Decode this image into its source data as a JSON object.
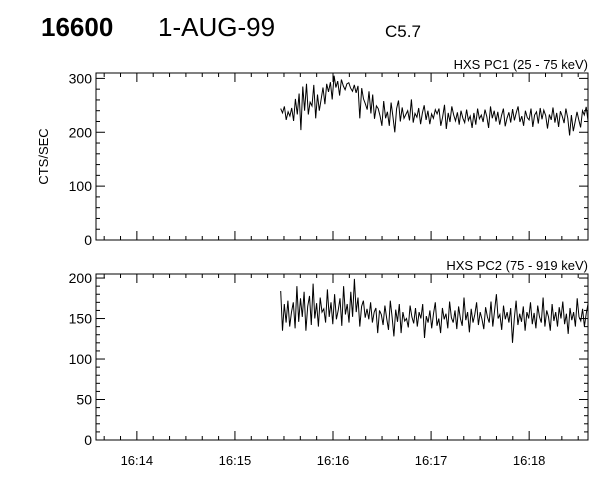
{
  "header": {
    "event_id": "16600",
    "date": "1-AUG-99",
    "flare_class": "C5.7"
  },
  "chart_data": [
    {
      "type": "line",
      "title": "HXS PC1 (25 - 75 keV)",
      "ylabel": "CTS/SEC",
      "xlabel": "",
      "ylim": [
        0,
        310
      ],
      "yticks": [
        0,
        100,
        200,
        300
      ],
      "xlim": [
        "16:13:35",
        "16:18:36"
      ],
      "xtick_labels": [
        "16:14",
        "16:15",
        "16:16",
        "16:17",
        "16:18"
      ],
      "series": [
        {
          "start_time": "16:15:28",
          "end_time": "16:18:36",
          "values": [
            244,
            236,
            248,
            223,
            238,
            230,
            245,
            221,
            262,
            233,
            272,
            204,
            285,
            240,
            290,
            233,
            256,
            249,
            288,
            226,
            270,
            240,
            262,
            283,
            252,
            290,
            275,
            293,
            261,
            305,
            283,
            295,
            268,
            298,
            286,
            279,
            290,
            292,
            282,
            276,
            288,
            273,
            286,
            226,
            282,
            262,
            253,
            242,
            276,
            235,
            270,
            225,
            249,
            244,
            230,
            212,
            258,
            226,
            238,
            212,
            255,
            228,
            200,
            244,
            259,
            220,
            246,
            226,
            233,
            240,
            222,
            261,
            218,
            235,
            228,
            245,
            215,
            236,
            250,
            223,
            240,
            215,
            234,
            226,
            242,
            234,
            244,
            212,
            228,
            251,
            206,
            236,
            219,
            248,
            232,
            221,
            237,
            214,
            240,
            226,
            218,
            242,
            222,
            230,
            208,
            236,
            214,
            244,
            225,
            232,
            219,
            242,
            229,
            208,
            248,
            226,
            240,
            220,
            238,
            214,
            231,
            244,
            211,
            226,
            237,
            218,
            243,
            222,
            236,
            248,
            219,
            230,
            212,
            240,
            227,
            223,
            244,
            210,
            232,
            238,
            216,
            245,
            224,
            241,
            231,
            207,
            233,
            223,
            246,
            218,
            236,
            210,
            239,
            230,
            217,
            244,
            226,
            194,
            232,
            202,
            219,
            238,
            223,
            209,
            240,
            232,
            247,
            221
          ]
        }
      ]
    },
    {
      "type": "line",
      "title": "HXS PC2 (75 - 919 keV)",
      "ylabel": "",
      "xlabel": "",
      "ylim": [
        0,
        205
      ],
      "yticks": [
        0,
        50,
        100,
        150,
        200
      ],
      "xlim": [
        "16:13:35",
        "16:18:36"
      ],
      "xtick_labels": [
        "16:14",
        "16:15",
        "16:16",
        "16:17",
        "16:18"
      ],
      "series": [
        {
          "start_time": "16:15:28",
          "end_time": "16:18:36",
          "values": [
            184,
            135,
            168,
            145,
            172,
            140,
            158,
            170,
            138,
            190,
            146,
            175,
            152,
            183,
            135,
            165,
            178,
            142,
            193,
            150,
            169,
            140,
            176,
            158,
            162,
            145,
            186,
            152,
            170,
            143,
            180,
            149,
            160,
            175,
            141,
            190,
            155,
            168,
            145,
            183,
            152,
            199,
            158,
            176,
            140,
            165,
            172,
            151,
            162,
            149,
            170,
            145,
            158,
            163,
            132,
            160,
            155,
            142,
            166,
            150,
            136,
            172,
            152,
            128,
            161,
            146,
            168,
            132,
            158,
            147,
            150,
            139,
            166,
            152,
            144,
            163,
            140,
            158,
            150,
            168,
            126,
            153,
            145,
            160,
            138,
            156,
            170,
            141,
            150,
            132,
            163,
            149,
            156,
            138,
            171,
            151,
            145,
            160,
            137,
            165,
            150,
            141,
            176,
            148,
            158,
            133,
            162,
            145,
            155,
            170,
            142,
            158,
            149,
            137,
            164,
            152,
            145,
            171,
            140,
            160,
            180,
            150,
            155,
            136,
            166,
            149,
            158,
            145,
            163,
            120,
            150,
            172,
            142,
            156,
            146,
            165,
            135,
            158,
            150,
            170,
            143,
            157,
            138,
            166,
            152,
            145,
            176,
            140,
            160,
            152,
            135,
            168,
            147,
            158,
            140,
            164,
            150,
            171,
            143,
            156,
            131,
            163,
            148,
            158,
            140,
            175,
            152,
            147,
            162,
            140,
            156,
            168
          ]
        }
      ]
    }
  ]
}
